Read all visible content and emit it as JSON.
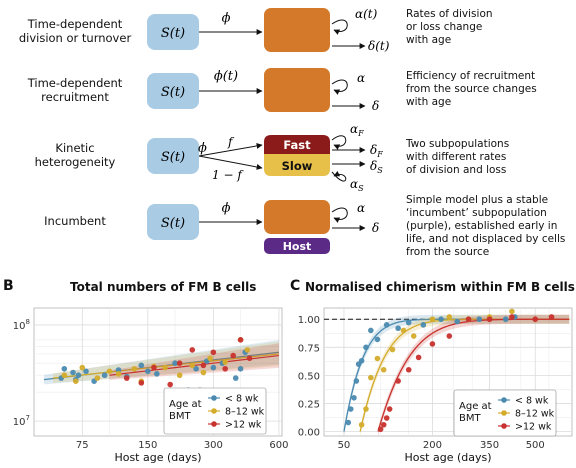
{
  "models": [
    {
      "label": "Time-dependent\ndivision or turnover",
      "source": "S(t)",
      "input": "ϕ",
      "self_rate": "α(t)",
      "loss_rate": "δ(t)",
      "description": "Rates of division\nor loss change\nwith age"
    },
    {
      "label": "Time-dependent\nrecruitment",
      "source": "S(t)",
      "input": "ϕ(t)",
      "self_rate": "α",
      "loss_rate": "δ",
      "description": "Efficiency of recruitment\nfrom the source changes\nwith age"
    },
    {
      "label": "Kinetic\nheterogeneity",
      "source": "S(t)",
      "input": "ϕ",
      "split_fast": "f",
      "split_slow": "1 − f",
      "fast_box": "Fast",
      "slow_box": "Slow",
      "fast_self": "αF",
      "fast_loss": "δF",
      "slow_self": "αS",
      "slow_loss": "δS",
      "description": "Two subpopulations\nwith different rates\nof division and loss"
    },
    {
      "label": "Incumbent",
      "source": "S(t)",
      "input": "ϕ",
      "self_rate": "α",
      "loss_rate": "δ",
      "host_box": "Host",
      "description": "Simple model plus a stable\n‘incumbent’ subpopulation\n(purple), established early in\nlife, and not displaced by cells\nfrom the source"
    }
  ],
  "colors": {
    "source": "#a9cbe3",
    "cells": "#d4782a",
    "fast": "#8b1a1a",
    "slow": "#e6c049",
    "host": "#5b2a86",
    "lt8": "#4a8ab0",
    "8to12": "#d4ac2b",
    "gt12": "#c8322e"
  },
  "panelB": {
    "letter": "B",
    "title": "Total numbers of FM B cells"
  },
  "panelC": {
    "letter": "C",
    "title": "Normalised chimerism within FM B cells"
  },
  "chart_data": [
    {
      "type": "scatter",
      "title": "Total numbers of FM B cells",
      "xlabel": "Host age (days)",
      "ylabel": "",
      "xscale": "log",
      "yscale": "log",
      "xlim": [
        45,
        620
      ],
      "ylim": [
        7000000,
        150000000
      ],
      "xticks": [
        75,
        150,
        300,
        600
      ],
      "yticks_text": [
        "10^7",
        "10^8"
      ],
      "yticks": [
        10000000,
        100000000
      ],
      "legend": {
        "title": "Age at\nBMT",
        "position": "bottom-right",
        "entries": [
          "< 8 wk",
          "8–12 wk",
          ">12 wk"
        ]
      },
      "series": [
        {
          "name": "< 8 wk",
          "color": "#4a8ab0",
          "x": [
            60,
            62,
            68,
            70,
            72,
            78,
            85,
            95,
            110,
            120,
            140,
            150,
            165,
            200,
            230,
            250,
            260,
            280,
            300,
            330,
            380,
            400,
            420
          ],
          "y": [
            28000000,
            35000000,
            32000000,
            27000000,
            30000000,
            33000000,
            26000000,
            30000000,
            34000000,
            29000000,
            38000000,
            33000000,
            31000000,
            40000000,
            21000000,
            35000000,
            21000000,
            42000000,
            36000000,
            40000000,
            28000000,
            35000000,
            52000000
          ]
        },
        {
          "name": "8–12 wk",
          "color": "#d4ac2b",
          "x": [
            62,
            70,
            75,
            88,
            100,
            110,
            130,
            140,
            160,
            180,
            210,
            240,
            270,
            290,
            340,
            400,
            430
          ],
          "y": [
            30000000,
            26000000,
            36000000,
            28000000,
            33000000,
            31000000,
            35000000,
            26000000,
            37000000,
            36000000,
            30000000,
            38000000,
            32000000,
            45000000,
            41000000,
            70000000,
            55000000
          ]
        },
        {
          "name": ">12 wk",
          "color": "#c8322e",
          "x": [
            120,
            140,
            160,
            190,
            210,
            240,
            270,
            300,
            340,
            370,
            400,
            440
          ],
          "y": [
            28000000,
            25000000,
            36000000,
            24000000,
            40000000,
            55000000,
            38000000,
            52000000,
            35000000,
            48000000,
            70000000,
            45000000
          ]
        }
      ],
      "fits": [
        {
          "name": "< 8 wk",
          "x": [
            50,
            600
          ],
          "y": [
            27000000,
            52000000
          ]
        },
        {
          "name": "8–12 wk",
          "x": [
            55,
            600
          ],
          "y": [
            28000000,
            50000000
          ]
        },
        {
          "name": ">12 wk",
          "x": [
            100,
            600
          ],
          "y": [
            30000000,
            48000000
          ]
        }
      ]
    },
    {
      "type": "scatter",
      "title": "Normalised chimerism within FM B cells",
      "xlabel": "Host age (days)",
      "ylabel": "",
      "xscale": "sqrt",
      "xlim": [
        30,
        640
      ],
      "ylim": [
        -0.04,
        1.1
      ],
      "xticks": [
        50,
        200,
        350,
        500
      ],
      "yticks": [
        0.0,
        0.25,
        0.5,
        0.75,
        1.0
      ],
      "yticks_text": [
        "0.00",
        "0.25",
        "0.50",
        "0.75",
        "1.00"
      ],
      "reference_line": 1.0,
      "legend": {
        "title": "Age at\nBMT",
        "position": "bottom-right",
        "entries": [
          "< 8 wk",
          "8–12 wk",
          ">12 wk"
        ]
      },
      "series": [
        {
          "name": "< 8 wk",
          "color": "#4a8ab0",
          "x": [
            55,
            58,
            62,
            65,
            68,
            72,
            78,
            85,
            95,
            110,
            130,
            150,
            180,
            220,
            260,
            320,
            400,
            430
          ],
          "y": [
            0.08,
            0.2,
            0.3,
            0.45,
            0.6,
            0.63,
            0.75,
            0.9,
            0.82,
            0.95,
            0.92,
            0.97,
            0.95,
            1.0,
            0.98,
            1.0,
            1.0,
            1.02
          ]
        },
        {
          "name": "8–12 wk",
          "color": "#d4ac2b",
          "x": [
            72,
            78,
            85,
            95,
            105,
            120,
            140,
            160,
            200,
            240,
            290,
            350,
            420
          ],
          "y": [
            0.06,
            0.2,
            0.48,
            0.65,
            0.55,
            0.73,
            0.9,
            0.85,
            1.0,
            1.02,
            1.0,
            1.02,
            1.07
          ]
        },
        {
          "name": ">12 wk",
          "color": "#c8322e",
          "x": [
            100,
            105,
            110,
            115,
            130,
            150,
            170,
            200,
            240,
            290,
            350,
            420,
            500,
            560
          ],
          "y": [
            0.02,
            0.06,
            0.12,
            0.2,
            0.45,
            0.55,
            0.66,
            0.78,
            0.85,
            1.0,
            1.0,
            1.02,
            1.0,
            1.02
          ]
        }
      ],
      "fits": [
        {
          "name": "< 8 wk",
          "x0": 50,
          "color": "#4a8ab0",
          "rate": 0.045
        },
        {
          "name": "8–12 wk",
          "x0": 70,
          "color": "#d4ac2b",
          "rate": 0.03
        },
        {
          "name": ">12 wk",
          "x0": 96,
          "color": "#c8322e",
          "rate": 0.02
        }
      ]
    }
  ]
}
